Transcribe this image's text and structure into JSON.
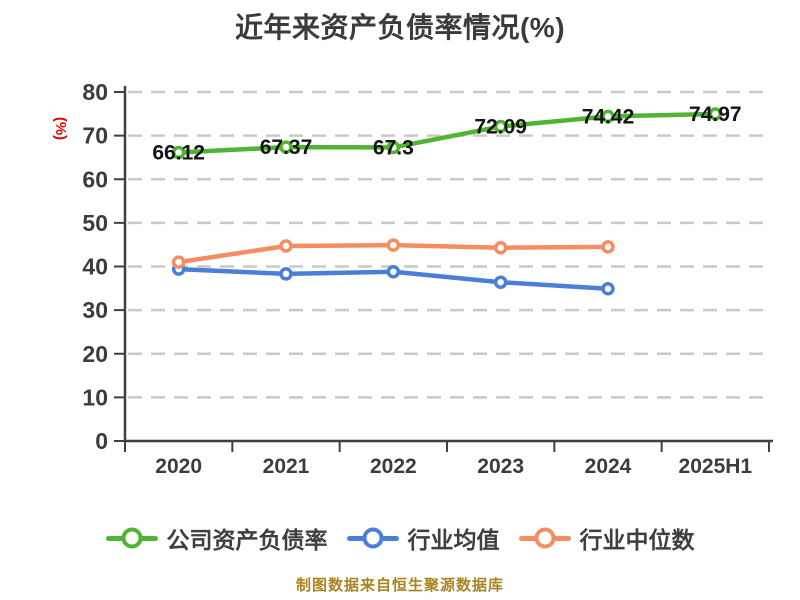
{
  "title": "近年来资产负债率情况(%)",
  "footer": "制图数据来自恒生聚源数据库",
  "chart_data": {
    "type": "line",
    "title": "近年来资产负债率情况(%)",
    "ylabel": "(%)",
    "xlabel": "",
    "categories": [
      "2020",
      "2021",
      "2022",
      "2023",
      "2024",
      "2025H1"
    ],
    "series": [
      {
        "name": "公司资产负债率",
        "color": "#50b432",
        "values": [
          66.12,
          67.37,
          67.3,
          72.09,
          74.42,
          74.97
        ],
        "labels": [
          "66.12",
          "67.37",
          "67.3",
          "72.09",
          "74.42",
          "74.97"
        ],
        "show_labels": true
      },
      {
        "name": "行业均值",
        "color": "#4a7fd9",
        "values": [
          39.4,
          38.3,
          38.8,
          36.4,
          34.9
        ],
        "labels": [],
        "show_labels": false
      },
      {
        "name": "行业中位数",
        "color": "#f48d62",
        "values": [
          41.0,
          44.7,
          44.9,
          44.3,
          44.5
        ],
        "labels": [],
        "show_labels": false
      }
    ],
    "ylim": [
      0,
      80
    ],
    "ytick_step": 10,
    "ytick_labels": [
      "0",
      "10",
      "20",
      "30",
      "40",
      "50",
      "60",
      "70",
      "80"
    ],
    "grid": "horizontal-dashed",
    "legend_position": "bottom",
    "marker": "white-filled-circle",
    "axis_color": "#3f3f3f",
    "tick_text_color": "#3c3c3c",
    "grid_color": "#c9c9c9",
    "data_label_color": "#141414",
    "ylabel_color": "#e60000",
    "footer_color": "#aa8420"
  }
}
